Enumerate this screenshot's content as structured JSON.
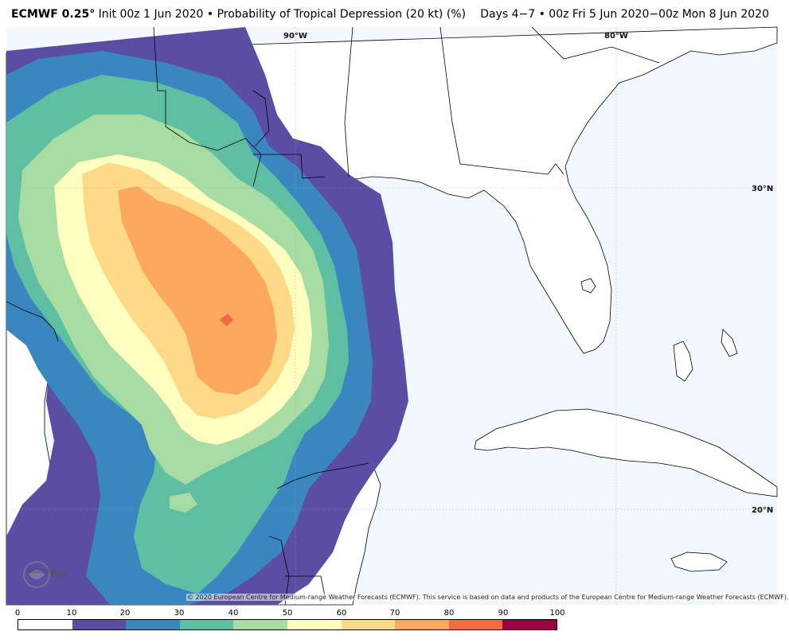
{
  "header": {
    "model": "ECMWF 0.25°",
    "title": "Init 00z 1 Jun 2020 • Probability of Tropical Depression (20 kt) (%)",
    "period": "Days 4−7 • 00z Fri 5 Jun 2020−00z Mon 8 Jun 2020"
  },
  "map": {
    "gridlines": {
      "lon": [
        "90°W",
        "80°W"
      ],
      "lat": [
        "30°N",
        "20°N"
      ]
    },
    "copyright": "© 2020 European Centre for Medium-range Weather Forecasts (ECMWF). This service is based on data and products of the European Centre for Medium-range Weather Forecasts (ECMWF).",
    "logo_text": [
      "WEATHER",
      "BELL"
    ]
  },
  "colorbar": {
    "ticks": [
      "0",
      "10",
      "20",
      "30",
      "40",
      "50",
      "60",
      "70",
      "80",
      "90",
      "100"
    ],
    "colors": [
      "#ffffff",
      "#5b4da3",
      "#3a86c0",
      "#5fbfa3",
      "#a7dda2",
      "#ffffbf",
      "#fed987",
      "#fca85e",
      "#f46b43",
      "#9c0142"
    ]
  },
  "colors": {
    "ocean": "#f3f8ff",
    "land": "#ffffff"
  }
}
